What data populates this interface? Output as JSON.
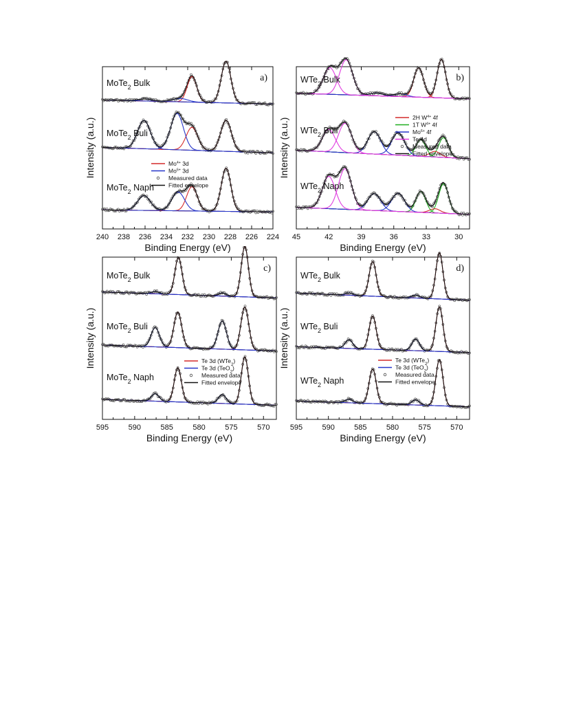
{
  "chart_data": [
    {
      "type": "line",
      "panel_label": "a)",
      "xlabel": "Binding Energy (eV)",
      "ylabel": "Intensity (a.u.)",
      "xlim": [
        240,
        224
      ],
      "x_reversed": true,
      "x_ticks": [
        240,
        238,
        236,
        234,
        232,
        230,
        228,
        226,
        224
      ],
      "samples": [
        "MoTe2 Bulk",
        "MoTe2 Buli",
        "MoTe2 Naph"
      ],
      "legend": [
        {
          "label": "Mo4+ 3d",
          "style": "red-line"
        },
        {
          "label": "Mo6+ 3d",
          "style": "blue-line"
        },
        {
          "label": "Measured data",
          "style": "circle"
        },
        {
          "label": "Fitted envelope",
          "style": "black-line"
        }
      ],
      "series": [
        {
          "name": "MoTe2 Bulk",
          "baseline": [
            0.22,
            0.16
          ],
          "peaks": [
            {
              "center": 228.4,
              "width": 0.45,
              "height": 0.62,
              "component": "Mo4+ 3d"
            },
            {
              "center": 231.6,
              "width": 0.45,
              "height": 0.38,
              "component": "Mo4+ 3d"
            },
            {
              "center": 232.7,
              "width": 0.7,
              "height": 0.05,
              "component": "Mo6+ 3d"
            },
            {
              "center": 236.0,
              "width": 0.6,
              "height": 0.03,
              "component": "Mo6+ 3d"
            }
          ]
        },
        {
          "name": "MoTe2 Buli",
          "baseline": [
            0.22,
            0.14
          ],
          "peaks": [
            {
              "center": 228.4,
              "width": 0.5,
              "height": 0.46,
              "component": "Mo4+ 3d"
            },
            {
              "center": 231.6,
              "width": 0.55,
              "height": 0.34,
              "component": "Mo4+ 3d"
            },
            {
              "center": 233.0,
              "width": 0.6,
              "height": 0.54,
              "component": "Mo6+ 3d"
            },
            {
              "center": 236.1,
              "width": 0.6,
              "height": 0.42,
              "component": "Mo6+ 3d"
            }
          ]
        },
        {
          "name": "MoTe2 Naph",
          "baseline": [
            0.17,
            0.14
          ],
          "peaks": [
            {
              "center": 228.4,
              "width": 0.45,
              "height": 0.64,
              "component": "Mo4+ 3d"
            },
            {
              "center": 231.6,
              "width": 0.5,
              "height": 0.36,
              "component": "Mo4+ 3d"
            },
            {
              "center": 232.9,
              "width": 0.6,
              "height": 0.28,
              "component": "Mo6+ 3d"
            },
            {
              "center": 236.1,
              "width": 0.6,
              "height": 0.22,
              "component": "Mo6+ 3d"
            }
          ]
        }
      ]
    },
    {
      "type": "line",
      "panel_label": "b)",
      "xlabel": "Binding Energy (eV)",
      "ylabel": "Intensity (a.u.)",
      "xlim": [
        45,
        29
      ],
      "x_reversed": true,
      "x_ticks": [
        45,
        42,
        39,
        36,
        33,
        30
      ],
      "samples": [
        "WTe2 Bulk",
        "WTe2 Buli",
        "WTe2 Naph"
      ],
      "legend": [
        {
          "label": "2H W4+ 4f",
          "style": "red-line"
        },
        {
          "label": "1T W4+ 4f",
          "style": "green-line"
        },
        {
          "label": "Mo6+ 4f",
          "style": "blue-line"
        },
        {
          "label": "Te 4d",
          "style": "magenta-line"
        },
        {
          "label": "Measured data",
          "style": "circle"
        },
        {
          "label": "Fitted envelope",
          "style": "black-line"
        }
      ],
      "series": [
        {
          "name": "WTe2 Bulk",
          "baseline": [
            0.2,
            0.12
          ],
          "peaks": [
            {
              "center": 31.6,
              "width": 0.4,
              "height": 0.55,
              "component": "2H W4+ 4f"
            },
            {
              "center": 33.7,
              "width": 0.45,
              "height": 0.42,
              "component": "2H W4+ 4f"
            },
            {
              "center": 35.4,
              "width": 0.6,
              "height": 0.04,
              "component": "Mo6+ 4f"
            },
            {
              "center": 37.6,
              "width": 0.6,
              "height": 0.04,
              "component": "Mo6+ 4f"
            },
            {
              "center": 40.4,
              "width": 0.6,
              "height": 0.5,
              "component": "Te 4d"
            },
            {
              "center": 41.9,
              "width": 0.6,
              "height": 0.38,
              "component": "Te 4d"
            }
          ]
        },
        {
          "name": "WTe2 Buli",
          "baseline": [
            0.22,
            0.1
          ],
          "peaks": [
            {
              "center": 31.4,
              "width": 0.45,
              "height": 0.28,
              "component": "1T W4+ 4f"
            },
            {
              "center": 32.2,
              "width": 0.5,
              "height": 0.08,
              "component": "2H W4+ 4f"
            },
            {
              "center": 33.5,
              "width": 0.45,
              "height": 0.24,
              "component": "1T W4+ 4f"
            },
            {
              "center": 35.6,
              "width": 0.6,
              "height": 0.32,
              "component": "Mo6+ 4f"
            },
            {
              "center": 37.8,
              "width": 0.6,
              "height": 0.32,
              "component": "Mo6+ 4f"
            },
            {
              "center": 40.5,
              "width": 0.6,
              "height": 0.42,
              "component": "Te 4d"
            },
            {
              "center": 42.0,
              "width": 0.6,
              "height": 0.32,
              "component": "Te 4d"
            }
          ]
        },
        {
          "name": "WTe2 Naph",
          "baseline": [
            0.2,
            0.1
          ],
          "peaks": [
            {
              "center": 31.4,
              "width": 0.45,
              "height": 0.42,
              "component": "1T W4+ 4f"
            },
            {
              "center": 32.2,
              "width": 0.5,
              "height": 0.06,
              "component": "2H W4+ 4f"
            },
            {
              "center": 33.5,
              "width": 0.45,
              "height": 0.3,
              "component": "1T W4+ 4f"
            },
            {
              "center": 35.6,
              "width": 0.6,
              "height": 0.26,
              "component": "Mo6+ 4f"
            },
            {
              "center": 37.8,
              "width": 0.6,
              "height": 0.24,
              "component": "Mo6+ 4f"
            },
            {
              "center": 40.5,
              "width": 0.6,
              "height": 0.58,
              "component": "Te 4d"
            },
            {
              "center": 42.0,
              "width": 0.6,
              "height": 0.46,
              "component": "Te 4d"
            }
          ]
        }
      ]
    },
    {
      "type": "line",
      "panel_label": "c)",
      "xlabel": "Binding Energy (eV)",
      "ylabel": "Intensity (a.u.)",
      "xlim": [
        595,
        568
      ],
      "x_reversed": true,
      "x_ticks": [
        595,
        590,
        585,
        580,
        575,
        570
      ],
      "samples": [
        "MoTe2 Bulk",
        "MoTe2 Buli",
        "MoTe2 Naph"
      ],
      "legend": [
        {
          "label": "Te 3d (WTe2)",
          "style": "red-line"
        },
        {
          "label": "Te 3d (TeO2)",
          "style": "blue-line"
        },
        {
          "label": "Measured data",
          "style": "circle"
        },
        {
          "label": "Fitted envelope",
          "style": "black-line"
        }
      ],
      "series": [
        {
          "name": "MoTe2 Bulk",
          "baseline": [
            0.16,
            0.08
          ],
          "peaks": [
            {
              "center": 572.9,
              "width": 0.55,
              "height": 0.68,
              "component": "Te 3d (WTe2)"
            },
            {
              "center": 583.2,
              "width": 0.55,
              "height": 0.5,
              "component": "Te 3d (WTe2)"
            },
            {
              "center": 576.4,
              "width": 0.6,
              "height": 0.04,
              "component": "Te 3d (TeO2)"
            },
            {
              "center": 586.8,
              "width": 0.6,
              "height": 0.03,
              "component": "Te 3d (TeO2)"
            }
          ]
        },
        {
          "name": "MoTe2 Buli",
          "baseline": [
            0.14,
            0.06
          ],
          "peaks": [
            {
              "center": 572.9,
              "width": 0.6,
              "height": 0.58,
              "component": "Te 3d (WTe2)"
            },
            {
              "center": 583.3,
              "width": 0.6,
              "height": 0.48,
              "component": "Te 3d (WTe2)"
            },
            {
              "center": 576.4,
              "width": 0.65,
              "height": 0.38,
              "component": "Te 3d (TeO2)"
            },
            {
              "center": 586.8,
              "width": 0.65,
              "height": 0.26,
              "component": "Te 3d (TeO2)"
            }
          ]
        },
        {
          "name": "MoTe2 Naph",
          "baseline": [
            0.14,
            0.06
          ],
          "peaks": [
            {
              "center": 572.9,
              "width": 0.55,
              "height": 0.64,
              "component": "Te 3d (WTe2)"
            },
            {
              "center": 583.3,
              "width": 0.55,
              "height": 0.46,
              "component": "Te 3d (WTe2)"
            },
            {
              "center": 576.4,
              "width": 0.6,
              "height": 0.12,
              "component": "Te 3d (TeO2)"
            },
            {
              "center": 586.8,
              "width": 0.6,
              "height": 0.1,
              "component": "Te 3d (TeO2)"
            }
          ]
        }
      ]
    },
    {
      "type": "line",
      "panel_label": "d)",
      "xlabel": "Binding Energy (eV)",
      "ylabel": "Intensity (a.u.)",
      "xlim": [
        595,
        568
      ],
      "x_reversed": true,
      "x_ticks": [
        595,
        590,
        585,
        580,
        575,
        570
      ],
      "samples": [
        "WTe2 Bulk",
        "WTe2 Buli",
        "WTe2 Naph"
      ],
      "legend": [
        {
          "label": "Te 3d (WTe2)",
          "style": "red-line"
        },
        {
          "label": "Te 3d (TeO2)",
          "style": "blue-line"
        },
        {
          "label": "Measured data",
          "style": "circle"
        },
        {
          "label": "Fitted envelope",
          "style": "black-line"
        }
      ],
      "series": [
        {
          "name": "WTe2 Bulk",
          "baseline": [
            0.16,
            0.06
          ],
          "peaks": [
            {
              "center": 572.7,
              "width": 0.55,
              "height": 0.64,
              "component": "Te 3d (WTe2)"
            },
            {
              "center": 583.1,
              "width": 0.55,
              "height": 0.48,
              "component": "Te 3d (WTe2)"
            },
            {
              "center": 576.4,
              "width": 0.6,
              "height": 0.04,
              "component": "Te 3d (TeO2)"
            },
            {
              "center": 586.8,
              "width": 0.6,
              "height": 0.03,
              "component": "Te 3d (TeO2)"
            }
          ]
        },
        {
          "name": "WTe2 Buli",
          "baseline": [
            0.14,
            0.06
          ],
          "peaks": [
            {
              "center": 572.7,
              "width": 0.55,
              "height": 0.62,
              "component": "Te 3d (WTe2)"
            },
            {
              "center": 583.1,
              "width": 0.55,
              "height": 0.46,
              "component": "Te 3d (WTe2)"
            },
            {
              "center": 576.4,
              "width": 0.6,
              "height": 0.16,
              "component": "Te 3d (TeO2)"
            },
            {
              "center": 586.8,
              "width": 0.6,
              "height": 0.12,
              "component": "Te 3d (TeO2)"
            }
          ]
        },
        {
          "name": "WTe2 Naph",
          "baseline": [
            0.14,
            0.06
          ],
          "peaks": [
            {
              "center": 572.7,
              "width": 0.55,
              "height": 0.64,
              "component": "Te 3d (WTe2)"
            },
            {
              "center": 583.1,
              "width": 0.55,
              "height": 0.48,
              "component": "Te 3d (WTe2)"
            },
            {
              "center": 576.4,
              "width": 0.6,
              "height": 0.07,
              "component": "Te 3d (TeO2)"
            },
            {
              "center": 586.8,
              "width": 0.6,
              "height": 0.05,
              "component": "Te 3d (TeO2)"
            }
          ]
        }
      ]
    }
  ]
}
